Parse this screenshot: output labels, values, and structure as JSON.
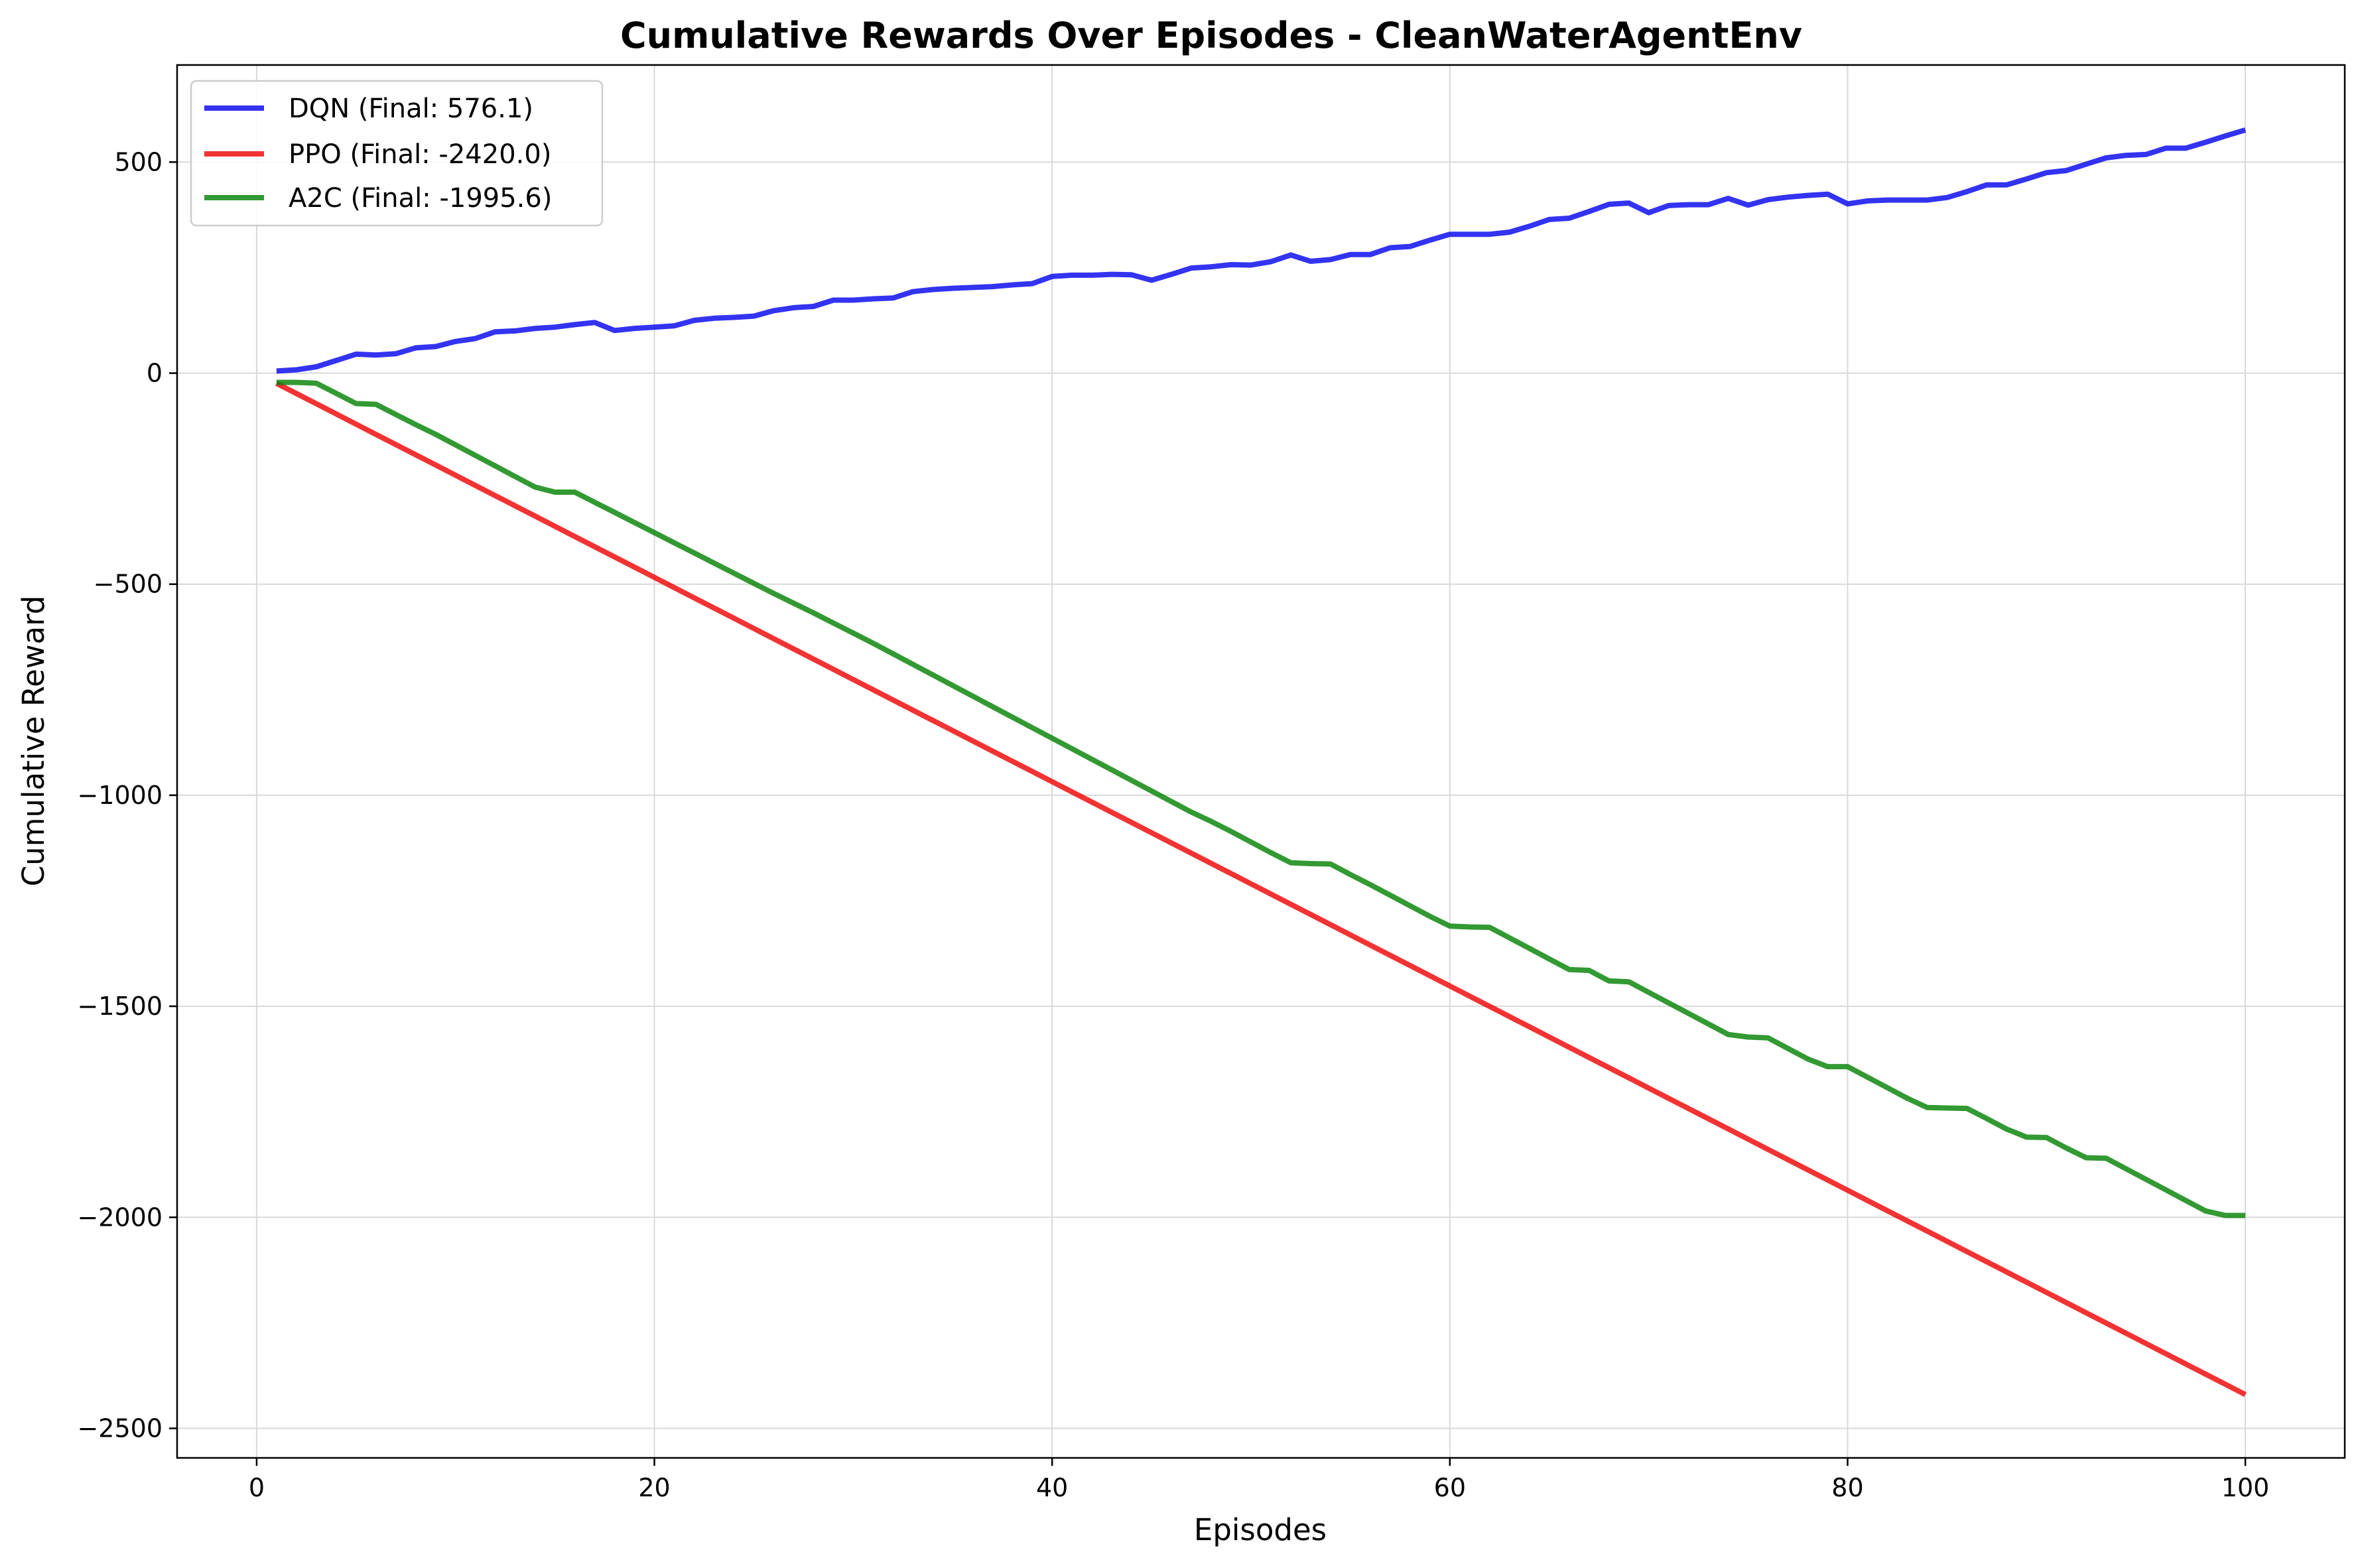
{
  "chart_data": {
    "type": "line",
    "title": "Cumulative Rewards Over Episodes - CleanWaterAgentEnv",
    "xlabel": "Episodes",
    "ylabel": "Cumulative Reward",
    "xlim": [
      -4,
      105
    ],
    "ylim": [
      -2570,
      730
    ],
    "xticks": [
      0,
      20,
      40,
      60,
      80,
      100
    ],
    "yticks": [
      500,
      0,
      -500,
      -1000,
      -1500,
      -2000,
      -2500
    ],
    "xtick_labels": [
      "0",
      "20",
      "40",
      "60",
      "80",
      "100"
    ],
    "ytick_labels": [
      "500",
      "0",
      "−500",
      "−1000",
      "−1500",
      "−2000",
      "−2500"
    ],
    "grid": true,
    "legend_position": "top-left",
    "x": [
      1,
      2,
      3,
      4,
      5,
      6,
      7,
      8,
      9,
      10,
      11,
      12,
      13,
      14,
      15,
      16,
      17,
      18,
      19,
      20,
      21,
      22,
      23,
      24,
      25,
      26,
      27,
      28,
      29,
      30,
      31,
      32,
      33,
      34,
      35,
      36,
      37,
      38,
      39,
      40,
      41,
      42,
      43,
      44,
      45,
      46,
      47,
      48,
      49,
      50,
      51,
      52,
      53,
      54,
      55,
      56,
      57,
      58,
      59,
      60,
      61,
      62,
      63,
      64,
      65,
      66,
      67,
      68,
      69,
      70,
      71,
      72,
      73,
      74,
      75,
      76,
      77,
      78,
      79,
      80,
      81,
      82,
      83,
      84,
      85,
      86,
      87,
      88,
      89,
      90,
      91,
      92,
      93,
      94,
      95,
      96,
      97,
      98,
      99,
      100
    ],
    "series": [
      {
        "name": "DQN (Final: 576.1)",
        "color": "#0000ee",
        "values": [
          5,
          8,
          15,
          30,
          45,
          43,
          46,
          60,
          63,
          75,
          82,
          98,
          100,
          106,
          109,
          115,
          120,
          101,
          106,
          109,
          112,
          125,
          130,
          132,
          135,
          148,
          155,
          158,
          173,
          173,
          176,
          178,
          193,
          198,
          201,
          203,
          205,
          209,
          212,
          229,
          232,
          232,
          234,
          233,
          220,
          234,
          249,
          252,
          257,
          256,
          264,
          280,
          265,
          269,
          281,
          281,
          297,
          300,
          315,
          329,
          329,
          329,
          334,
          348,
          364,
          367,
          383,
          400,
          403,
          380,
          397,
          399,
          399,
          414,
          398,
          411,
          417,
          421,
          424,
          401,
          408,
          410,
          410,
          410,
          416,
          430,
          446,
          446,
          460,
          475,
          480,
          495,
          510,
          516,
          518,
          533,
          533,
          547,
          562,
          576.1
        ]
      },
      {
        "name": "PPO (Final: -2420.0)",
        "color": "#ee0000",
        "values": [
          -24.2,
          -48.4,
          -72.6,
          -96.8,
          -121,
          -145.2,
          -169.4,
          -193.6,
          -217.8,
          -242,
          -266.2,
          -290.4,
          -314.6,
          -338.8,
          -363,
          -387.2,
          -411.4,
          -435.6,
          -459.8,
          -484,
          -508.2,
          -532.4,
          -556.6,
          -580.8,
          -605,
          -629.2,
          -653.4,
          -677.6,
          -701.8,
          -726,
          -750.2,
          -774.4,
          -798.6,
          -822.8,
          -847,
          -871.2,
          -895.4,
          -919.6,
          -943.8,
          -968,
          -992.2,
          -1016.4,
          -1040.6,
          -1064.8,
          -1089,
          -1113.2,
          -1137.4,
          -1161.6,
          -1185.8,
          -1210,
          -1234.2,
          -1258.4,
          -1282.6,
          -1306.8,
          -1331,
          -1355.2,
          -1379.4,
          -1403.6,
          -1427.8,
          -1452,
          -1476.2,
          -1500.4,
          -1524.6,
          -1548.8,
          -1573,
          -1597.2,
          -1621.4,
          -1645.6,
          -1669.8,
          -1694,
          -1718.2,
          -1742.4,
          -1766.6,
          -1790.8,
          -1815,
          -1839.2,
          -1863.4,
          -1887.6,
          -1911.8,
          -1936,
          -1960.2,
          -1984.4,
          -2008.6,
          -2032.8,
          -2057,
          -2081.2,
          -2105.4,
          -2129.6,
          -2153.8,
          -2178,
          -2202.2,
          -2226.4,
          -2250.6,
          -2274.8,
          -2299,
          -2323.2,
          -2347.4,
          -2371.6,
          -2395.8,
          -2420
        ]
      },
      {
        "name": "A2C (Final: -1995.6)",
        "color": "#008000",
        "values": [
          -22,
          -22,
          -24,
          -48,
          -72,
          -74,
          -98,
          -122,
          -145,
          -170,
          -195,
          -220,
          -245,
          -270,
          -282,
          -282,
          -306,
          -330,
          -354,
          -378,
          -402,
          -426,
          -450,
          -474,
          -498,
          -522,
          -545,
          -568,
          -592,
          -616,
          -640,
          -665,
          -690,
          -715,
          -740,
          -765,
          -790,
          -815,
          -840,
          -865,
          -890,
          -915,
          -940,
          -965,
          -990,
          -1015,
          -1040,
          -1062,
          -1086,
          -1111,
          -1136,
          -1160,
          -1162,
          -1163,
          -1188,
          -1212,
          -1237,
          -1262,
          -1287,
          -1310,
          -1312,
          -1313,
          -1338,
          -1363,
          -1388,
          -1413,
          -1415,
          -1440,
          -1442,
          -1467,
          -1492,
          -1517,
          -1542,
          -1567,
          -1573,
          -1575,
          -1600,
          -1625,
          -1643,
          -1643,
          -1668,
          -1693,
          -1718,
          -1740,
          -1741,
          -1742,
          -1766,
          -1791,
          -1810,
          -1811,
          -1836,
          -1859,
          -1860,
          -1885,
          -1910,
          -1935,
          -1960,
          -1985,
          -1995.6,
          -1995.6
        ]
      }
    ]
  }
}
